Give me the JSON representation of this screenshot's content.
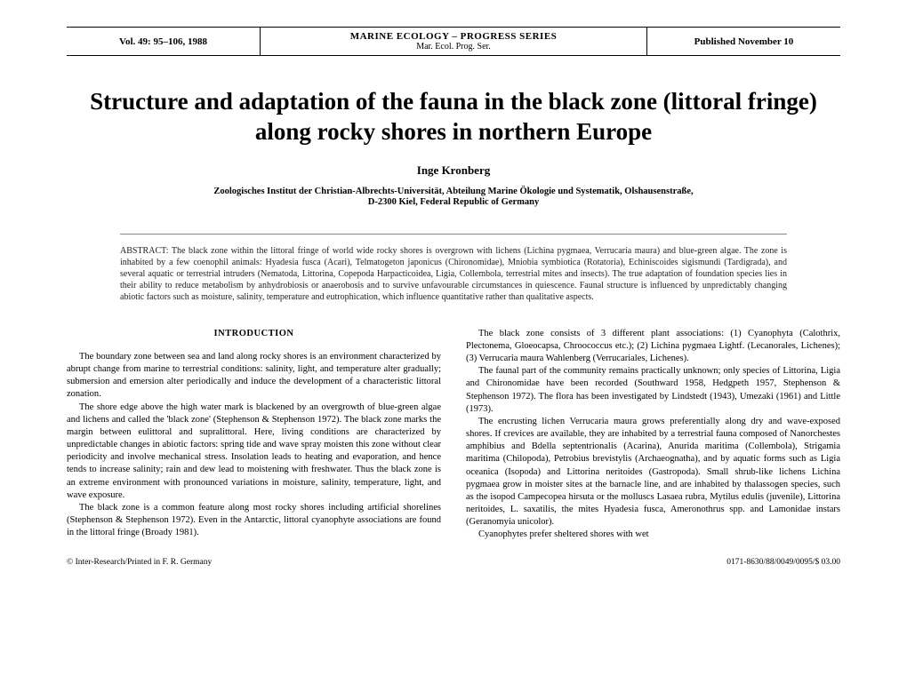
{
  "header": {
    "volume": "Vol. 49: 95–106, 1988",
    "journal_line1": "MARINE ECOLOGY – PROGRESS SERIES",
    "journal_line2": "Mar. Ecol. Prog. Ser.",
    "published": "Published November 10"
  },
  "title": "Structure and adaptation of the fauna in the black zone (littoral fringe) along rocky shores in northern Europe",
  "author": "Inge Kronberg",
  "affiliation_line1": "Zoologisches Institut der Christian-Albrechts-Universität, Abteilung Marine Ökologie und Systematik, Olshausenstraße,",
  "affiliation_line2": "D-2300 Kiel, Federal Republic of Germany",
  "abstract": {
    "label": "ABSTRACT:",
    "text": "The black zone within the littoral fringe of world wide rocky shores is overgrown with lichens (Lichina pygmaea, Verrucaria maura) and blue-green algae. The zone is inhabited by a few coenophil animals: Hyadesia fusca (Acari), Telmatogeton japonicus (Chironomidae), Mniobia symbiotica (Rotatoria), Echiniscoides sigismundi (Tardigrada), and several aquatic or terrestrial intruders (Nematoda, Littorina, Copepoda Harpacticoidea, Ligia, Collembola, terrestrial mites and insects). The true adaptation of foundation species lies in their ability to reduce metabolism by anhydrobiosis or anaerobosis and to survive unfavourable circumstances in quiescence. Faunal structure is influenced by unpredictably changing abiotic factors such as moisture, salinity, temperature and eutrophication, which influence quantitative rather than qualitative aspects."
  },
  "section_heading": "INTRODUCTION",
  "left_column": {
    "p1": "The boundary zone between sea and land along rocky shores is an environment characterized by abrupt change from marine to terrestrial conditions: salinity, light, and temperature alter gradually; submersion and emersion alter periodically and induce the development of a characteristic littoral zonation.",
    "p2": "The shore edge above the high water mark is blackened by an overgrowth of blue-green algae and lichens and called the 'black zone' (Stephenson & Stephenson 1972). The black zone marks the margin between eulittoral and supralittoral. Here, living conditions are characterized by unpredictable changes in abiotic factors: spring tide and wave spray moisten this zone without clear periodicity and involve mechanical stress. Insolation leads to heating and evaporation, and hence tends to increase salinity; rain and dew lead to moistening with freshwater. Thus the black zone is an extreme environment with pronounced variations in moisture, salinity, temperature, light, and wave exposure.",
    "p3": "The black zone is a common feature along most rocky shores including artificial shorelines (Stephenson & Stephenson 1972). Even in the Antarctic, littoral cyanophyte associations are found in the littoral fringe (Broady 1981)."
  },
  "right_column": {
    "p1": "The black zone consists of 3 different plant associations: (1) Cyanophyta (Calothrix, Plectonema, Gloeocapsa, Chroococcus etc.); (2) Lichina pygmaea Lightf. (Lecanorales, Lichenes); (3) Verrucaria maura Wahlenberg (Verrucariales, Lichenes).",
    "p2": "The faunal part of the community remains practically unknown; only species of Littorina, Ligia and Chironomidae have been recorded (Southward 1958, Hedgpeth 1957, Stephenson & Stephenson 1972). The flora has been investigated by Lindstedt (1943), Umezaki (1961) and Little (1973).",
    "p3": "The encrusting lichen Verrucaria maura grows preferentially along dry and wave-exposed shores. If crevices are available, they are inhabited by a terrestrial fauna composed of Nanorchestes amphibius and Bdella septentrionalis (Acarina), Anurida maritima (Collembola), Strigamia maritima (Chilopoda), Petrobius brevistylis (Archaeognatha), and by aquatic forms such as Ligia oceanica (Isopoda) and Littorina neritoides (Gastropoda). Small shrub-like lichens Lichina pygmaea grow in moister sites at the barnacle line, and are inhabited by thalassogen species, such as the isopod Campecopea hirsuta or the molluscs Lasaea rubra, Mytilus edulis (juvenile), Littorina neritoides, L. saxatilis, the mites Hyadesia fusca, Ameronothrus spp. and Lamonidae instars (Geranomyia unicolor).",
    "p4": "Cyanophytes prefer sheltered shores with wet"
  },
  "footer": {
    "left": "© Inter-Research/Printed in F. R. Germany",
    "right": "0171-8630/88/0049/0095/$ 03.00"
  }
}
